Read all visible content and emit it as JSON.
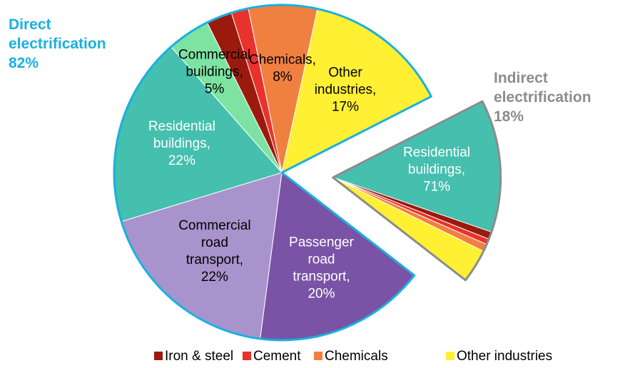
{
  "chart_data": {
    "type": "pie",
    "groups": [
      {
        "label": [
          "Indirect",
          "electrification"
        ],
        "value": 18,
        "value_label": "18%",
        "color": "#8c8c8c",
        "exploded": true,
        "slices": [
          {
            "label": [
              "Residential",
              "buildings,"
            ],
            "value": 71,
            "value_label": "71%",
            "color": "#45bfae"
          },
          {
            "value": 4,
            "color": "#9b1a0e"
          },
          {
            "value": 3,
            "color": "#e8322b"
          },
          {
            "value": 4,
            "color": "#f08040"
          },
          {
            "value": 18,
            "color": "#fff033"
          }
        ]
      },
      {
        "label": [
          "Direct",
          "electrification"
        ],
        "value": 82,
        "value_label": "82%",
        "color": "#1ab0e0",
        "exploded": false,
        "slices": [
          {
            "label": [
              "Passenger",
              "road",
              "transport,"
            ],
            "value": 20,
            "value_label": "20%",
            "color": "#7a52a6"
          },
          {
            "label": [
              "Commercial",
              "road",
              "transport,"
            ],
            "value": 22,
            "value_label": "22%",
            "color": "#a993cc"
          },
          {
            "label": [
              "Residential",
              "buildings,"
            ],
            "value": 22,
            "value_label": "22%",
            "color": "#45bfae"
          },
          {
            "label": [
              "Commercial",
              "buildings,"
            ],
            "value": 5,
            "value_label": "5%",
            "color": "#7de3a3"
          },
          {
            "value": 3,
            "color": "#9b1a0e"
          },
          {
            "value": 2,
            "color": "#e8322b"
          },
          {
            "label": [
              "Chemicals,"
            ],
            "value": 8,
            "value_label": "8%",
            "color": "#f08040"
          },
          {
            "label": [
              "Other",
              "industries,"
            ],
            "value": 17,
            "value_label": "17%",
            "color": "#fff033"
          }
        ]
      }
    ],
    "legend": [
      {
        "name": "Iron & steel",
        "color": "#9b1a0e"
      },
      {
        "name": "Cement",
        "color": "#e8322b"
      },
      {
        "name": "Chemicals",
        "color": "#f08040"
      },
      {
        "name": "Other industries",
        "color": "#fff033"
      }
    ]
  }
}
